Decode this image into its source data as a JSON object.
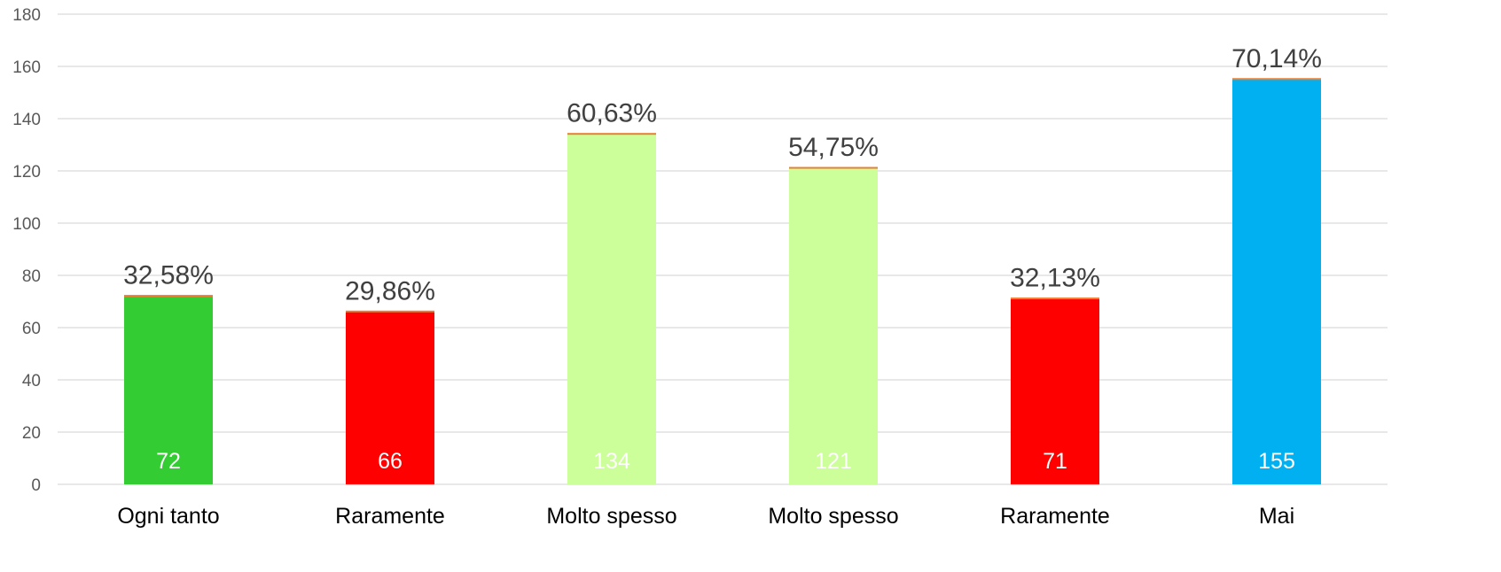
{
  "chart_data": {
    "type": "bar",
    "categories": [
      "Ogni tanto",
      "Raramente",
      "Molto spesso",
      "Molto spesso",
      "Raramente",
      "Mai"
    ],
    "values": [
      72,
      66,
      134,
      121,
      71,
      155
    ],
    "value_labels": [
      "72",
      "66",
      "134",
      "121",
      "71",
      "155"
    ],
    "percent_labels": [
      "32,58%",
      "29,86%",
      "60,63%",
      "54,75%",
      "32,13%",
      "70,14%"
    ],
    "bar_colors": [
      "#33cc33",
      "#ff0000",
      "#ccff99",
      "#ccff99",
      "#ff0000",
      "#00b0f0"
    ],
    "cap_color": "#ed7d31",
    "y_ticks": [
      "0",
      "20",
      "40",
      "60",
      "80",
      "100",
      "120",
      "140",
      "160",
      "180"
    ],
    "ylim": [
      0,
      180
    ],
    "grid": true,
    "legend": "none",
    "title": "",
    "xlabel": "",
    "ylabel": ""
  }
}
